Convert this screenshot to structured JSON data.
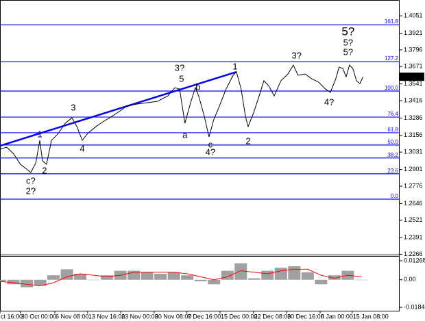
{
  "chart_data": [
    {
      "type": "line",
      "x": [
        0,
        0.2,
        0.41,
        0.61,
        0.82,
        0.92,
        1.07,
        1.19,
        1.27,
        1.39,
        1.54,
        1.74,
        1.95,
        2.15,
        2.3,
        2.46,
        2.62,
        2.87,
        3.07,
        3.28,
        3.59,
        3.79,
        4.1,
        4.41,
        4.71,
        5.02,
        5.23,
        5.37,
        5.53,
        5.7,
        5.84,
        5.94,
        6.11,
        6.25,
        6.39,
        6.56,
        6.76,
        6.97,
        7.07,
        7.21,
        7.34,
        7.42,
        7.58,
        7.75,
        7.89,
        8.03,
        8.2,
        8.4,
        8.61,
        8.77,
        8.91,
        9.12,
        9.32,
        9.53,
        9.73,
        9.88,
        10.04,
        10.14,
        10.25,
        10.35,
        10.45,
        10.55,
        10.66,
        10.76,
        10.86
      ],
      "values": [
        1.3053,
        1.3068,
        1.3017,
        1.294,
        1.2899,
        1.2879,
        1.295,
        1.3119,
        1.2966,
        1.294,
        1.3119,
        1.317,
        1.3247,
        1.3288,
        1.3222,
        1.3119,
        1.317,
        1.3222,
        1.3257,
        1.3288,
        1.3339,
        1.3375,
        1.3391,
        1.3401,
        1.3411,
        1.3452,
        1.3513,
        1.3503,
        1.3247,
        1.3401,
        1.3513,
        1.3452,
        1.3298,
        1.3145,
        1.3273,
        1.3375,
        1.3503,
        1.3606,
        1.3631,
        1.3503,
        1.3298,
        1.3222,
        1.3324,
        1.3452,
        1.3565,
        1.3529,
        1.3452,
        1.3565,
        1.3616,
        1.3682,
        1.3606,
        1.3616,
        1.358,
        1.3554,
        1.3503,
        1.3478,
        1.358,
        1.3667,
        1.3657,
        1.3595,
        1.3682,
        1.3657,
        1.3565,
        1.3544,
        1.3595
      ],
      "color": "#000000",
      "xlim": [
        0,
        11.95
      ],
      "xticks": [
        {
          "value": 0,
          "label": "ct 16:00"
        },
        {
          "value": 0.61,
          "label": "30 Oct 00:00"
        },
        {
          "value": 1.64,
          "label": "6 Nov 08:00"
        },
        {
          "value": 2.62,
          "label": "13 Nov 16:00"
        },
        {
          "value": 3.61,
          "label": "23 Nov 00:00"
        },
        {
          "value": 4.61,
          "label": "30 Nov 08:00"
        },
        {
          "value": 5.59,
          "label": "7 Dec 16:00"
        },
        {
          "value": 6.58,
          "label": "15 Dec 00:00"
        },
        {
          "value": 7.58,
          "label": "22 Dec 08:00"
        },
        {
          "value": 8.57,
          "label": "30 Dec 16:00"
        },
        {
          "value": 9.57,
          "label": "8 Jan 00:00"
        },
        {
          "value": 10.53,
          "label": "15 Jan 08:00"
        }
      ],
      "ylim": [
        1.2264,
        1.4159
      ],
      "yticks": [
        1.4051,
        1.3921,
        1.3796,
        1.3671,
        1.3541,
        1.3416,
        1.3286,
        1.3156,
        1.3031,
        1.2901,
        1.2776,
        1.2646,
        1.2521,
        1.2391,
        1.2266
      ],
      "level_color": "#0000ff",
      "levels": [
        {
          "label": "161.8",
          "value": 1.3984
        },
        {
          "label": "127.2",
          "value": 1.3708
        },
        {
          "label": "100.0",
          "value": 1.3488
        },
        {
          "label": "76.4",
          "value": 1.3293
        },
        {
          "label": "61.8",
          "value": 1.3176
        },
        {
          "label": "50.0",
          "value": 1.3084
        },
        {
          "label": "38.2",
          "value": 1.2987
        },
        {
          "label": "23.6",
          "value": 1.2869
        },
        {
          "label": "0.0",
          "value": 1.2679
        }
      ],
      "trendline": {
        "x": [
          0,
          7.07
        ],
        "values": [
          1.3078,
          1.3631
        ],
        "color": "#0000ff"
      },
      "last_price": 1.3595,
      "annotations": [
        {
          "text": "5?",
          "color": "#0000cc",
          "x": 10.41,
          "y": 1.3928
        },
        {
          "text": "5?",
          "color": "#008000",
          "x": 10.41,
          "y": 1.3846
        },
        {
          "text": "5?",
          "color": "#ff0000",
          "x": 10.41,
          "y": 1.3775
        },
        {
          "text": "3?",
          "color": "#008000",
          "x": 5.37,
          "y": 1.3657
        },
        {
          "text": "3?",
          "color": "#ff0000",
          "x": 8.87,
          "y": 1.3749
        },
        {
          "text": "4?",
          "color": "#ff0000",
          "x": 9.84,
          "y": 1.3401
        },
        {
          "text": "4?",
          "color": "#008000",
          "x": 6.29,
          "y": 1.3027
        },
        {
          "text": "2?",
          "color": "#008000",
          "x": 0.92,
          "y": 1.2735
        },
        {
          "text": "c?",
          "color": "#ff0000",
          "x": 0.92,
          "y": 1.2812
        },
        {
          "text": "1",
          "color": "#ff0000",
          "x": 7.03,
          "y": 1.3667
        },
        {
          "text": "1",
          "color": "#ff0000",
          "x": 1.19,
          "y": 1.316
        },
        {
          "text": "2",
          "color": "#ff0000",
          "x": 7.42,
          "y": 1.3109
        },
        {
          "text": "2",
          "color": "#ff0000",
          "x": 1.33,
          "y": 1.2889
        },
        {
          "text": "3",
          "color": "#ff0000",
          "x": 2.19,
          "y": 1.336
        },
        {
          "text": "4",
          "color": "#ff0000",
          "x": 2.46,
          "y": 1.3053
        },
        {
          "text": "5",
          "color": "#ff0000",
          "x": 5.43,
          "y": 1.3575
        },
        {
          "text": "a",
          "color": "#ff0000",
          "x": 5.53,
          "y": 1.3155
        },
        {
          "text": "b",
          "color": "#ff0000",
          "x": 5.92,
          "y": 1.3513
        },
        {
          "text": "c",
          "color": "#ff0000",
          "x": 6.29,
          "y": 1.3083
        }
      ]
    },
    {
      "type": "bar",
      "x": [
        0,
        0.4,
        0.8,
        1.2,
        1.6,
        2.0,
        2.4,
        2.8,
        3.2,
        3.6,
        4.0,
        4.4,
        4.8,
        5.2,
        5.6,
        6.0,
        6.4,
        6.8,
        7.2,
        7.6,
        8.0,
        8.4,
        8.8,
        9.2,
        9.6,
        10.0,
        10.4,
        10.8
      ],
      "values": [
        -0.001,
        -0.003,
        -0.005,
        -0.004,
        0.003,
        0.007,
        0.004,
        0.0,
        0.003,
        0.006,
        0.006,
        0.005,
        0.004,
        0.005,
        0.003,
        -0.001,
        -0.003,
        0.006,
        0.011,
        0.001,
        0.006,
        0.008,
        0.009,
        0.005,
        -0.003,
        0.003,
        0.006,
        0.0
      ],
      "color": "#a0a0a0",
      "signal": {
        "values": [
          -0.001,
          -0.002,
          -0.003,
          -0.004,
          -0.002,
          0.002,
          0.004,
          0.003,
          0.002,
          0.003,
          0.005,
          0.005,
          0.005,
          0.005,
          0.004,
          0.002,
          0.0,
          0.002,
          0.006,
          0.005,
          0.004,
          0.006,
          0.007,
          0.007,
          0.003,
          0.001,
          0.003,
          0.002
        ],
        "color": "#ff0000"
      },
      "xlim": [
        0,
        11.95
      ],
      "ylim": [
        -0.0211,
        0.0154
      ],
      "yticks": [
        0.01268,
        {
          "value": 0,
          "label": "0.00"
        },
        -0.01841
      ]
    }
  ]
}
